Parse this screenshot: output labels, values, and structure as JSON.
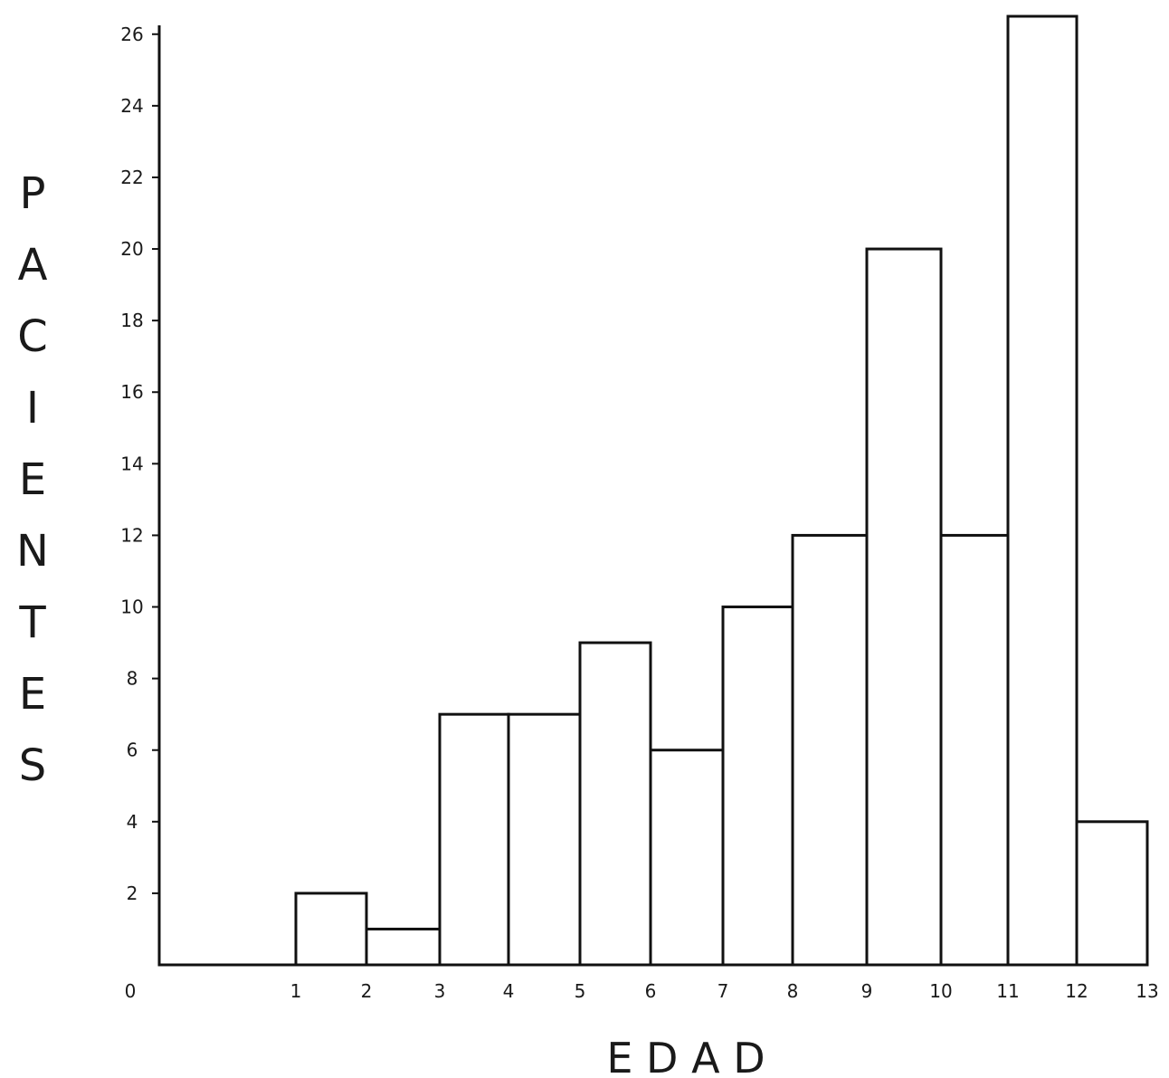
{
  "chart_data": {
    "type": "bar",
    "title": "",
    "xlabel": "E D A D",
    "ylabel": "PACIENTES",
    "x_ticks": [
      "0",
      "1",
      "2",
      "3",
      "4",
      "5",
      "6",
      "7",
      "8",
      "9",
      "10",
      "11",
      "12",
      "13"
    ],
    "y_ticks": [
      2,
      4,
      6,
      8,
      10,
      12,
      14,
      16,
      18,
      20,
      22,
      24,
      26
    ],
    "bins": [
      {
        "from": 1,
        "to": 2,
        "value": 2
      },
      {
        "from": 2,
        "to": 3,
        "value": 1
      },
      {
        "from": 3,
        "to": 4,
        "value": 7
      },
      {
        "from": 4,
        "to": 5,
        "value": 7
      },
      {
        "from": 5,
        "to": 6,
        "value": 9
      },
      {
        "from": 6,
        "to": 7,
        "value": 6
      },
      {
        "from": 7,
        "to": 8,
        "value": 10
      },
      {
        "from": 8,
        "to": 9,
        "value": 12
      },
      {
        "from": 9,
        "to": 10,
        "value": 20
      },
      {
        "from": 10,
        "to": 11,
        "value": 12
      },
      {
        "from": 11,
        "to": 12,
        "value": 26.5
      },
      {
        "from": 12,
        "to": 13,
        "value": 4
      }
    ],
    "ylim": [
      0,
      26.5
    ],
    "grid": false,
    "legend": "none"
  }
}
